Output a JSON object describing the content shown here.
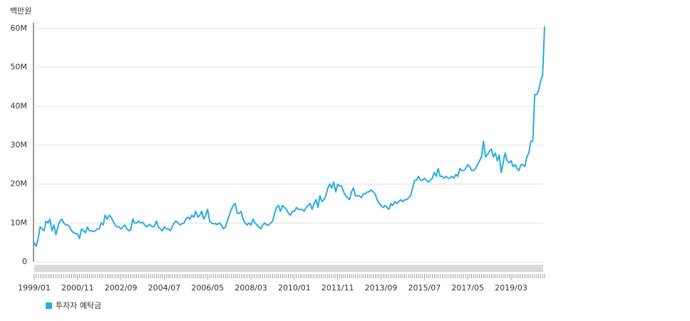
{
  "chart_data": {
    "type": "line",
    "y_unit_label": "백만원",
    "categories": [
      "1999/01",
      null,
      null,
      null,
      null,
      null,
      null,
      null,
      null,
      null,
      null,
      null,
      null,
      null,
      null,
      null,
      null,
      null,
      null,
      null,
      null,
      null,
      "2000/11",
      null,
      null,
      null,
      null,
      null,
      null,
      null,
      null,
      null,
      null,
      null,
      null,
      null,
      null,
      null,
      null,
      null,
      null,
      null,
      null,
      null,
      "2002/09",
      null,
      null,
      null,
      null,
      null,
      null,
      null,
      null,
      null,
      null,
      null,
      null,
      null,
      null,
      null,
      null,
      null,
      null,
      null,
      null,
      null,
      "2004/07",
      null,
      null,
      null,
      null,
      null,
      null,
      null,
      null,
      null,
      null,
      null,
      null,
      null,
      null,
      null,
      null,
      null,
      null,
      null,
      null,
      null,
      "2006/05",
      null,
      null,
      null,
      null,
      null,
      null,
      null,
      null,
      null,
      null,
      null,
      null,
      null,
      null,
      null,
      null,
      null,
      null,
      null,
      null,
      null,
      "2008/03",
      null,
      null,
      null,
      null,
      null,
      null,
      null,
      null,
      null,
      null,
      null,
      null,
      null,
      null,
      null,
      null,
      null,
      null,
      null,
      null,
      null,
      "2010/01",
      null,
      null,
      null,
      null,
      null,
      null,
      null,
      null,
      null,
      null,
      null,
      null,
      null,
      null,
      null,
      null,
      null,
      null,
      null,
      null,
      null,
      "2011/11",
      null,
      null,
      null,
      null,
      null,
      null,
      null,
      null,
      null,
      null,
      null,
      null,
      null,
      null,
      null,
      null,
      null,
      null,
      null,
      null,
      null,
      "2013/09",
      null,
      null,
      null,
      null,
      null,
      null,
      null,
      null,
      null,
      null,
      null,
      null,
      null,
      null,
      null,
      null,
      null,
      null,
      null,
      null,
      null,
      "2015/07",
      null,
      null,
      null,
      null,
      null,
      null,
      null,
      null,
      null,
      null,
      null,
      null,
      null,
      null,
      null,
      null,
      null,
      null,
      null,
      null,
      null,
      "2017/05",
      null,
      null,
      null,
      null,
      null,
      null,
      null,
      null,
      null,
      null,
      null,
      null,
      null,
      null,
      null,
      null,
      null,
      null,
      null,
      null,
      null,
      "2019/03",
      null,
      null,
      null,
      null,
      null,
      null,
      null,
      null,
      null,
      null,
      null,
      null,
      null,
      null,
      null,
      null,
      null
    ],
    "series": [
      {
        "name": "투자자 예탁금",
        "color": "#29abe2",
        "values": [
          5000000,
          4000000,
          6000000,
          9000000,
          8500000,
          8000000,
          10500000,
          10000000,
          11000000,
          8000000,
          9500000,
          7000000,
          9000000,
          10500000,
          11000000,
          10000000,
          9500000,
          9500000,
          9000000,
          8000000,
          7500000,
          7300000,
          7200000,
          6000000,
          8500000,
          8000000,
          7500000,
          9000000,
          8000000,
          8000000,
          7800000,
          8000000,
          8500000,
          8500000,
          10000000,
          9500000,
          12000000,
          11000000,
          12000000,
          11500000,
          10500000,
          9500000,
          9000000,
          9000000,
          8500000,
          9000000,
          9500000,
          8500000,
          8000000,
          8300000,
          11000000,
          10000000,
          10000000,
          10500000,
          10000000,
          10200000,
          9500000,
          9000000,
          9500000,
          9500000,
          9000000,
          9200000,
          10500000,
          9000000,
          8500000,
          8000000,
          9000000,
          8500000,
          8500000,
          8000000,
          9000000,
          10000000,
          10500000,
          10000000,
          9500000,
          9800000,
          10000000,
          11000000,
          11500000,
          11000000,
          12000000,
          11500000,
          13000000,
          11500000,
          12000000,
          13000000,
          11000000,
          12000000,
          13500000,
          10500000,
          10000000,
          9800000,
          9800000,
          9600000,
          10000000,
          9500000,
          8500000,
          9000000,
          10500000,
          12000000,
          13500000,
          14500000,
          15000000,
          12500000,
          12500000,
          13000000,
          11000000,
          10000000,
          9500000,
          10000000,
          9500000,
          11000000,
          10000000,
          9500000,
          9000000,
          8500000,
          9500000,
          10000000,
          9500000,
          9500000,
          10000000,
          10500000,
          12500000,
          14000000,
          14500000,
          13000000,
          14500000,
          14000000,
          13500000,
          12500000,
          12000000,
          13000000,
          13000000,
          14000000,
          13500000,
          13500000,
          13500000,
          13000000,
          14000000,
          14500000,
          15000000,
          13500000,
          15000000,
          16000000,
          14000000,
          17000000,
          15500000,
          16000000,
          17000000,
          19000000,
          20000000,
          19000000,
          20500000,
          18000000,
          20000000,
          19500000,
          19500000,
          18000000,
          17000000,
          16500000,
          16000000,
          18000000,
          19000000,
          17000000,
          17000000,
          17000000,
          16500000,
          17500000,
          17500000,
          18000000,
          18000000,
          18500000,
          18000000,
          17500000,
          16000000,
          15000000,
          14500000,
          14000000,
          14500000,
          14000000,
          13500000,
          15000000,
          14500000,
          15500000,
          15000000,
          15500000,
          16000000,
          15500000,
          16000000,
          16000000,
          16500000,
          17000000,
          19000000,
          21000000,
          21000000,
          22000000,
          21000000,
          21000000,
          21500000,
          21000000,
          20500000,
          21000000,
          21500000,
          23000000,
          22000000,
          24000000,
          22000000,
          22000000,
          21500000,
          22000000,
          21500000,
          21500000,
          22000000,
          21500000,
          22500000,
          22000000,
          24000000,
          23500000,
          23500000,
          24000000,
          25000000,
          24500000,
          23500000,
          23500000,
          24000000,
          25000000,
          26000000,
          27000000,
          31000000,
          27000000,
          27500000,
          28500000,
          29000000,
          27000000,
          28000000,
          26000000,
          27500000,
          23000000,
          25500000,
          28000000,
          26000000,
          25500000,
          26000000,
          24500000,
          25000000,
          24000000,
          23500000,
          25000000,
          25000000,
          24500000,
          27000000,
          28000000,
          31000000,
          31000000,
          43000000,
          43000000,
          44000000,
          46500000,
          48000000,
          60500000
        ]
      }
    ],
    "ylim": [
      0,
      60000000
    ],
    "yticks": [
      0,
      {
        "value": 10000000,
        "label": "10M"
      },
      {
        "value": 20000000,
        "label": "20M"
      },
      {
        "value": 30000000,
        "label": "30M"
      },
      {
        "value": 40000000,
        "label": "40M"
      },
      {
        "value": 50000000,
        "label": "50M"
      },
      {
        "value": 60000000,
        "label": "60M"
      }
    ],
    "grid": true
  }
}
